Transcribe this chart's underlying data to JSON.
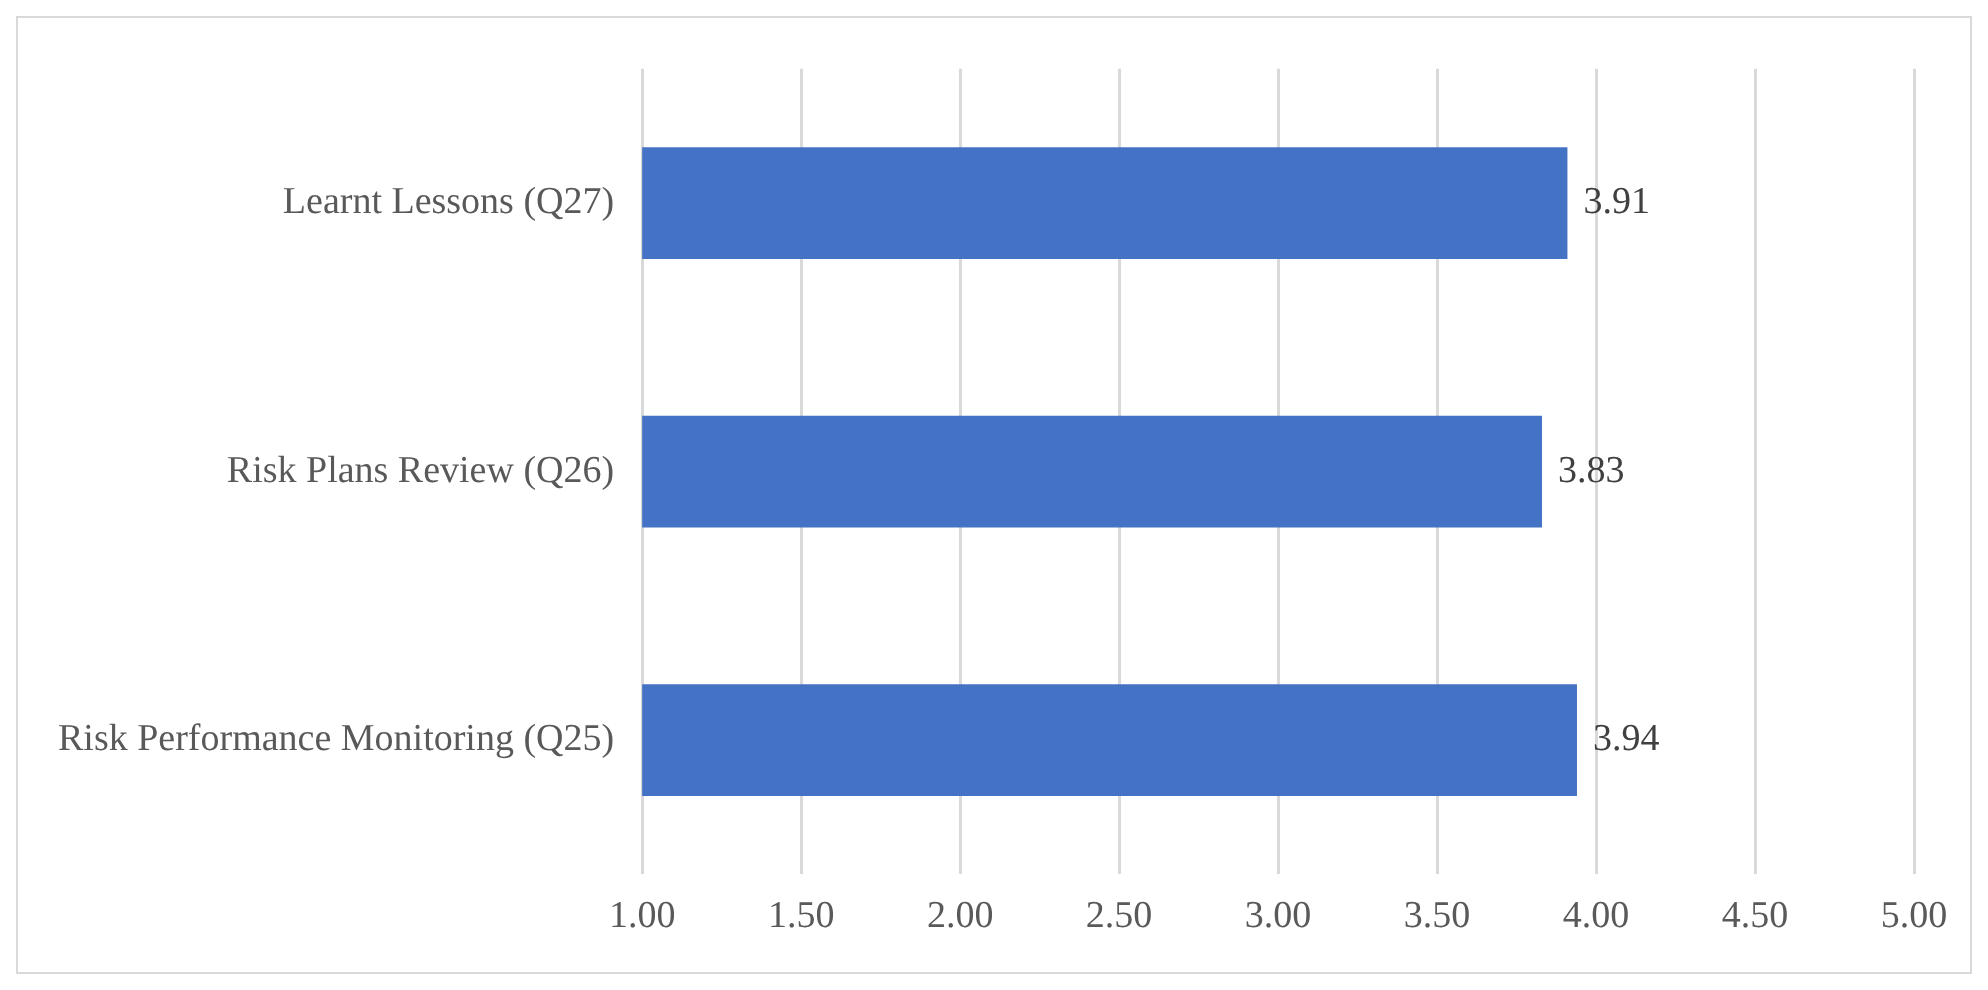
{
  "chart_data": {
    "type": "bar",
    "orientation": "horizontal",
    "categories": [
      "Learnt Lessons (Q27)",
      "Risk Plans Review (Q26)",
      "Risk Performance Monitoring (Q25)"
    ],
    "values": [
      3.91,
      3.83,
      3.94
    ],
    "color": "#4472c4",
    "xlim": [
      1,
      5
    ],
    "xticks": [
      {
        "value": 1,
        "label": "1.00"
      },
      {
        "value": 1.5,
        "label": "1.50"
      },
      {
        "value": 2,
        "label": "2.00"
      },
      {
        "value": 2.5,
        "label": "2.50"
      },
      {
        "value": 3,
        "label": "3.00"
      },
      {
        "value": 3.5,
        "label": "3.50"
      },
      {
        "value": 4,
        "label": "4.00"
      },
      {
        "value": 4.5,
        "label": "4.50"
      },
      {
        "value": 5,
        "label": "5.00"
      }
    ],
    "grid": "x",
    "data_labels": true
  }
}
